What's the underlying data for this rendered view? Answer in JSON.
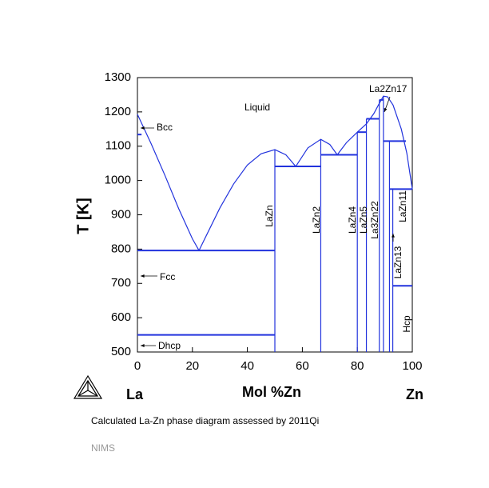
{
  "chart_data": {
    "type": "line",
    "xlabel": "Mol %Zn",
    "ylabel": "T [K]",
    "xlim": [
      0,
      100
    ],
    "ylim": [
      500,
      1300
    ],
    "xticks": [
      0,
      20,
      40,
      60,
      80,
      100
    ],
    "yticks": [
      500,
      600,
      700,
      800,
      900,
      1000,
      1100,
      1200,
      1300
    ],
    "left_element": "La",
    "right_element": "Zn",
    "caption": "Calculated La-Zn phase diagram assessed by 2011Qi",
    "source": "NIMS",
    "annotations": [
      "Liquid",
      "Bcc",
      "Fcc",
      "Dhcp",
      "LaZn",
      "LaZn2",
      "LaZn4",
      "LaZn5",
      "La3Zn22",
      "La2Zn17",
      "LaZn11",
      "LaZn13",
      "Hcp"
    ],
    "series": [
      {
        "color": "#2233dd",
        "x": [
          0,
          5,
          10,
          15,
          20,
          22.4
        ],
        "values": [
          1193,
          1107,
          1015,
          918,
          830,
          796
        ]
      },
      {
        "color": "#2233dd",
        "x": [
          22.4,
          30,
          35,
          40,
          45,
          50,
          54,
          57.6
        ],
        "values": [
          796,
          920,
          990,
          1045,
          1078,
          1090,
          1075,
          1041
        ]
      },
      {
        "color": "#2233dd",
        "x": [
          57.6,
          62,
          66.7,
          70,
          72.7
        ],
        "values": [
          1041,
          1095,
          1120,
          1105,
          1075
        ]
      },
      {
        "color": "#2233dd",
        "x": [
          72.7,
          76,
          80,
          83.3,
          86,
          88,
          89.5,
          91,
          93,
          96,
          98,
          100
        ],
        "values": [
          1075,
          1110,
          1141,
          1165,
          1195,
          1225,
          1246,
          1244,
          1220,
          1150,
          1080,
          975
        ]
      },
      {
        "color": "#2233dd",
        "x": [
          0,
          1.5
        ],
        "values": [
          1134,
          1134
        ]
      },
      {
        "color": "#2233dd",
        "x": [
          0,
          50
        ],
        "values": [
          796,
          796
        ]
      },
      {
        "color": "#2233dd",
        "x": [
          0,
          50
        ],
        "values": [
          550,
          550
        ]
      },
      {
        "color": "#2233dd",
        "x": [
          50,
          66.7
        ],
        "values": [
          1041,
          1041
        ]
      },
      {
        "color": "#2233dd",
        "x": [
          66.7,
          80
        ],
        "values": [
          1075,
          1075
        ]
      },
      {
        "color": "#2233dd",
        "x": [
          80,
          83.3
        ],
        "values": [
          1141,
          1141
        ]
      },
      {
        "color": "#2233dd",
        "x": [
          83.3,
          88
        ],
        "values": [
          1180,
          1180
        ]
      },
      {
        "color": "#2233dd",
        "x": [
          88,
          89.5
        ],
        "values": [
          1235,
          1235
        ]
      },
      {
        "color": "#2233dd",
        "x": [
          89.5,
          97.7
        ],
        "values": [
          1115,
          1115
        ]
      },
      {
        "color": "#2233dd",
        "x": [
          91.7,
          100
        ],
        "values": [
          975,
          975
        ]
      },
      {
        "color": "#2233dd",
        "x": [
          92.9,
          100
        ],
        "values": [
          693,
          693
        ]
      },
      {
        "color": "#2233dd",
        "x": [
          50,
          50
        ],
        "values": [
          500,
          1090
        ]
      },
      {
        "color": "#2233dd",
        "x": [
          66.7,
          66.7
        ],
        "values": [
          500,
          1120
        ]
      },
      {
        "color": "#2233dd",
        "x": [
          80,
          80
        ],
        "values": [
          500,
          1141
        ]
      },
      {
        "color": "#2233dd",
        "x": [
          83.3,
          83.3
        ],
        "values": [
          500,
          1180
        ]
      },
      {
        "color": "#2233dd",
        "x": [
          88,
          88
        ],
        "values": [
          500,
          1235
        ]
      },
      {
        "color": "#2233dd",
        "x": [
          89.5,
          89.5
        ],
        "values": [
          500,
          1246
        ]
      },
      {
        "color": "#2233dd",
        "x": [
          91.7,
          91.7
        ],
        "values": [
          500,
          1115
        ]
      },
      {
        "color": "#2233dd",
        "x": [
          92.9,
          92.9
        ],
        "values": [
          500,
          975
        ]
      }
    ]
  }
}
